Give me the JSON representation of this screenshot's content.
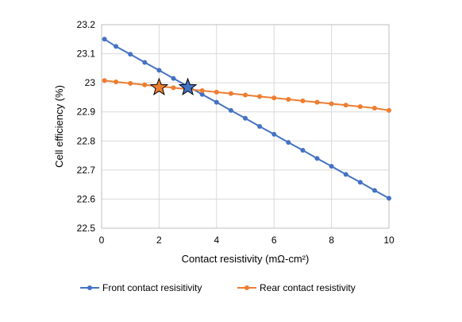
{
  "chart_data": {
    "type": "line",
    "title": "",
    "xlabel": "Contact resistivity (mΩ-cm²)",
    "ylabel": "Cell efficiency (%)",
    "xlim": [
      0,
      10
    ],
    "ylim": [
      22.5,
      23.2
    ],
    "x_ticks": [
      0,
      2,
      4,
      6,
      8,
      10
    ],
    "y_ticks": [
      22.5,
      22.6,
      22.7,
      22.8,
      22.9,
      23,
      23.1,
      23.2
    ],
    "x_tick_labels": [
      "0",
      "2",
      "4",
      "6",
      "8",
      "10"
    ],
    "y_tick_labels": [
      "22.5",
      "22.6",
      "22.7",
      "22.8",
      "22.9",
      "23",
      "23.1",
      "23.2"
    ],
    "grid": true,
    "legend_position": "bottom",
    "x": [
      0.1,
      0.5,
      1.0,
      1.5,
      2.0,
      2.5,
      3.0,
      3.5,
      4.0,
      4.5,
      5.0,
      5.5,
      6.0,
      6.5,
      7.0,
      7.5,
      8.0,
      8.5,
      9.0,
      9.5,
      10.0
    ],
    "series": [
      {
        "name": "Front contact resisitivity",
        "color": "#4472c4",
        "values": [
          23.15,
          23.125,
          23.098,
          23.07,
          23.043,
          23.015,
          22.988,
          22.96,
          22.933,
          22.905,
          22.878,
          22.85,
          22.823,
          22.795,
          22.768,
          22.74,
          22.713,
          22.685,
          22.658,
          22.63,
          22.603
        ]
      },
      {
        "name": "Rear contact resistivity",
        "color": "#ed7d31",
        "values": [
          23.008,
          23.003,
          22.998,
          22.993,
          22.988,
          22.983,
          22.978,
          22.973,
          22.968,
          22.963,
          22.958,
          22.953,
          22.948,
          22.943,
          22.938,
          22.933,
          22.928,
          22.923,
          22.918,
          22.913,
          22.905
        ]
      }
    ],
    "markers": [
      {
        "series": "Rear contact resistivity",
        "shape": "star",
        "x": 2.0,
        "y": 22.984,
        "color": "#ed7d31"
      },
      {
        "series": "Front contact resisitivity",
        "shape": "star",
        "x": 3.0,
        "y": 22.984,
        "color": "#4472c4"
      }
    ]
  }
}
